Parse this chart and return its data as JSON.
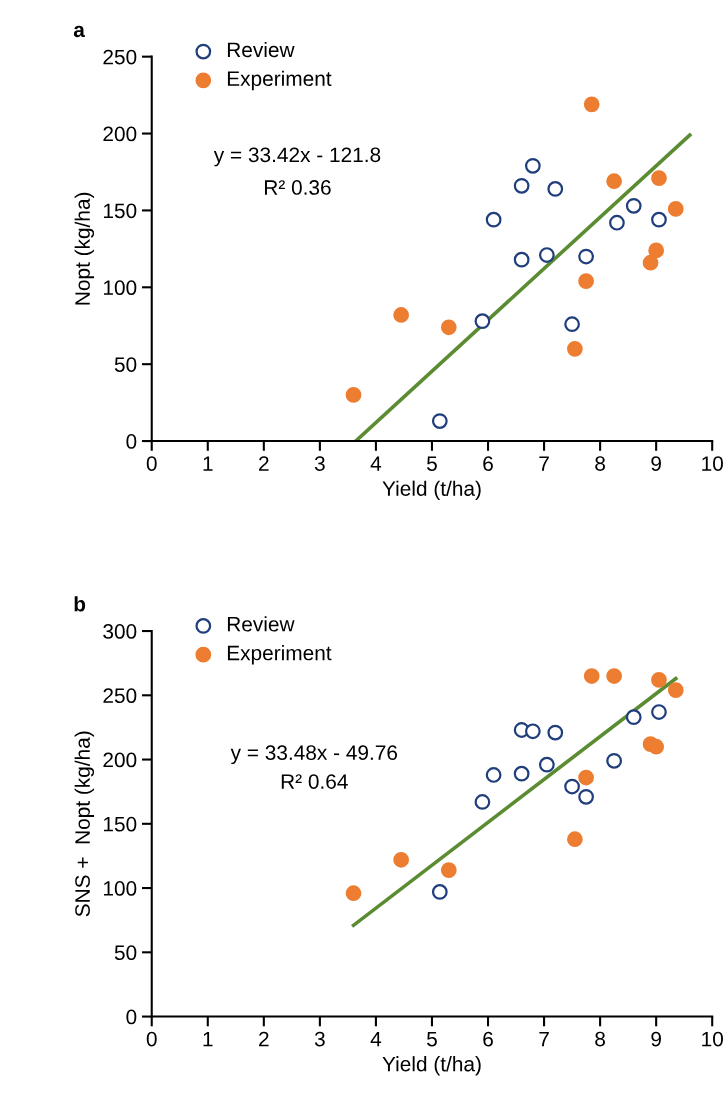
{
  "chart_data": [
    {
      "type": "scatter",
      "title": "a",
      "xlabel": "Yield (t/ha)",
      "ylabel": "Nopt (kg/ha)",
      "xlim": [
        0,
        10
      ],
      "xticks": [
        0,
        1,
        2,
        3,
        4,
        5,
        6,
        7,
        8,
        9,
        10
      ],
      "ylim": [
        0,
        250
      ],
      "yticks": [
        0,
        50,
        100,
        150,
        200,
        250
      ],
      "grid": false,
      "legend": "top left",
      "annotations": [
        "y = 33.42x - 121.8",
        "R² 0.36"
      ],
      "series": [
        {
          "name": "Review",
          "color": "#203e7c",
          "marker": "circle",
          "x": [
            5.14,
            5.9,
            6.1,
            6.6,
            6.6,
            6.8,
            7.05,
            7.2,
            7.5,
            7.75,
            8.3,
            8.6,
            9.05
          ],
          "values": [
            13,
            78,
            144,
            166,
            118,
            179,
            121,
            164,
            76,
            120,
            142,
            153,
            144
          ]
        },
        {
          "name": "Experiment",
          "color": "#ed7d31",
          "x": [
            3.6,
            4.45,
            5.3,
            7.55,
            7.75,
            7.85,
            8.25,
            8.9,
            9.0,
            9.05,
            9.35
          ],
          "values": [
            30,
            82,
            74,
            60,
            104,
            219,
            169,
            116,
            124,
            171,
            151
          ]
        },
        {
          "type": "line",
          "color": "#5b8c32",
          "x": [
            3.64,
            9.6
          ],
          "values": [
            0,
            199
          ]
        }
      ]
    },
    {
      "type": "scatter",
      "title": "b",
      "xlabel": "Yield (t/ha)",
      "ylabel": "SNS +  Nopt (kg/ha)",
      "xlim": [
        0,
        10
      ],
      "xticks": [
        0,
        1,
        2,
        3,
        4,
        5,
        6,
        7,
        8,
        9,
        10
      ],
      "ylim": [
        0,
        300
      ],
      "yticks": [
        0,
        50,
        100,
        150,
        200,
        250,
        300
      ],
      "grid": false,
      "legend": "top left",
      "annotations": [
        "y = 33.48x - 49.76",
        "R² 0.64"
      ],
      "series": [
        {
          "name": "Review",
          "color": "#203e7c",
          "marker": "circle",
          "x": [
            5.14,
            5.9,
            6.1,
            6.6,
            6.6,
            6.8,
            7.05,
            7.2,
            7.5,
            7.75,
            8.25,
            8.6,
            9.05
          ],
          "values": [
            97,
            167,
            188,
            189,
            223,
            222,
            196,
            221,
            179,
            171,
            199,
            233,
            237
          ]
        },
        {
          "name": "Experiment",
          "color": "#ed7d31",
          "x": [
            3.6,
            4.45,
            5.3,
            7.55,
            7.75,
            7.85,
            8.25,
            8.9,
            9.0,
            9.05,
            9.35
          ],
          "values": [
            96,
            122,
            114,
            138,
            186,
            265,
            265,
            212,
            210,
            262,
            254
          ]
        },
        {
          "type": "line",
          "color": "#5b8c32",
          "x": [
            3.6,
            9.35
          ],
          "values": [
            71,
            263
          ]
        }
      ]
    }
  ]
}
